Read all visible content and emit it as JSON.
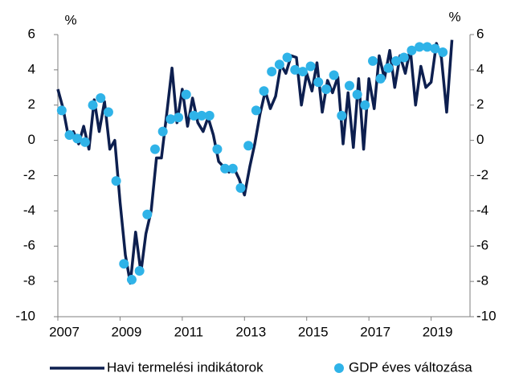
{
  "chart_data": {
    "type": "line",
    "y_label": "%",
    "y2_label": "%",
    "xlim": [
      2007,
      2020.25
    ],
    "xticks": [
      2007,
      2009,
      2011,
      2013,
      2015,
      2017,
      2019
    ],
    "ylim": [
      -10,
      6
    ],
    "yticks": [
      -10,
      -8,
      -6,
      -4,
      -2,
      0,
      2,
      4,
      6
    ],
    "y2lim": [
      -10,
      6
    ],
    "y2ticks": [
      -10,
      -8,
      -6,
      -4,
      -2,
      0,
      2,
      4,
      6
    ],
    "legend": "bottom",
    "series": [
      {
        "name": "Havi termelési indikátorok",
        "type": "line",
        "color": "#0d1f4f",
        "x": [
          2007.0,
          2007.17,
          2007.33,
          2007.5,
          2007.67,
          2007.83,
          2008.0,
          2008.17,
          2008.33,
          2008.5,
          2008.67,
          2008.83,
          2009.0,
          2009.17,
          2009.33,
          2009.5,
          2009.67,
          2009.83,
          2010.0,
          2010.17,
          2010.33,
          2010.5,
          2010.67,
          2010.83,
          2011.0,
          2011.17,
          2011.33,
          2011.5,
          2011.67,
          2011.83,
          2012.0,
          2012.17,
          2012.33,
          2012.5,
          2012.67,
          2012.83,
          2013.0,
          2013.17,
          2013.33,
          2013.5,
          2013.67,
          2013.83,
          2014.0,
          2014.17,
          2014.33,
          2014.5,
          2014.67,
          2014.83,
          2015.0,
          2015.17,
          2015.33,
          2015.5,
          2015.67,
          2015.83,
          2016.0,
          2016.17,
          2016.33,
          2016.5,
          2016.67,
          2016.83,
          2017.0,
          2017.17,
          2017.33,
          2017.5,
          2017.67,
          2017.83,
          2018.0,
          2018.17,
          2018.33,
          2018.5,
          2018.67,
          2018.83,
          2019.0,
          2019.17,
          2019.33,
          2019.5,
          2019.67
        ],
        "values": [
          2.9,
          1.8,
          0.3,
          0.5,
          -0.2,
          0.8,
          -0.5,
          2.3,
          0.5,
          2.2,
          -0.5,
          0.0,
          -3.5,
          -6.5,
          -8.1,
          -5.2,
          -7.5,
          -5.3,
          -4.0,
          -1.0,
          -1.0,
          1.5,
          4.1,
          1.0,
          2.9,
          0.8,
          2.4,
          1.0,
          0.5,
          1.3,
          0.3,
          -1.2,
          -1.5,
          -1.8,
          -1.6,
          -2.2,
          -3.1,
          -1.5,
          -0.2,
          1.5,
          2.8,
          1.8,
          2.5,
          4.3,
          3.8,
          4.8,
          4.7,
          2.0,
          3.8,
          2.8,
          4.4,
          1.6,
          3.4,
          2.7,
          3.6,
          -0.2,
          2.7,
          -0.4,
          3.5,
          -0.5,
          3.5,
          1.8,
          4.8,
          3.5,
          5.1,
          3.0,
          4.8,
          3.8,
          5.2,
          2.0,
          4.2,
          3.0,
          3.3,
          5.5,
          4.7,
          1.6,
          5.7
        ]
      },
      {
        "name": "GDP éves változása",
        "type": "scatter",
        "color": "#2fb3e8",
        "x": [
          2007.125,
          2007.375,
          2007.625,
          2007.875,
          2008.125,
          2008.375,
          2008.625,
          2008.875,
          2009.125,
          2009.375,
          2009.625,
          2009.875,
          2010.125,
          2010.375,
          2010.625,
          2010.875,
          2011.125,
          2011.375,
          2011.625,
          2011.875,
          2012.125,
          2012.375,
          2012.625,
          2012.875,
          2013.125,
          2013.375,
          2013.625,
          2013.875,
          2014.125,
          2014.375,
          2014.625,
          2014.875,
          2015.125,
          2015.375,
          2015.625,
          2015.875,
          2016.125,
          2016.375,
          2016.625,
          2016.875,
          2017.125,
          2017.375,
          2017.625,
          2017.875,
          2018.125,
          2018.375,
          2018.625,
          2018.875,
          2019.125,
          2019.375
        ],
        "values": [
          1.7,
          0.3,
          0.1,
          -0.1,
          2.0,
          2.4,
          1.6,
          -2.3,
          -7.0,
          -7.9,
          -7.4,
          -4.2,
          -0.5,
          0.5,
          1.2,
          1.3,
          2.6,
          1.4,
          1.4,
          1.4,
          -0.5,
          -1.6,
          -1.6,
          -2.7,
          -0.3,
          1.7,
          2.8,
          3.9,
          4.3,
          4.7,
          4.0,
          3.9,
          4.2,
          3.3,
          2.9,
          3.7,
          1.4,
          3.1,
          2.6,
          2.0,
          4.5,
          3.5,
          4.1,
          4.5,
          4.7,
          5.1,
          5.3,
          5.3,
          5.2,
          5.0
        ]
      }
    ]
  }
}
